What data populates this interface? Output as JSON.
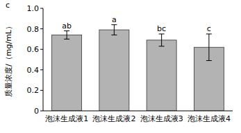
{
  "chart_data": {
    "type": "bar",
    "panel_label": "c",
    "ylabel": "质量浓度/（mg/mL）",
    "categories": [
      "泡沫生成液1",
      "泡沫生成液2",
      "泡沫生成液3",
      "泡沫生成液4"
    ],
    "values": [
      0.74,
      0.79,
      0.69,
      0.62
    ],
    "errors": [
      0.04,
      0.05,
      0.06,
      0.13
    ],
    "annotations": [
      "ab",
      "a",
      "bc",
      "c"
    ],
    "color": "#b3b3b3",
    "ylim": [
      0,
      1
    ],
    "yticks": [
      0,
      0.2,
      0.4,
      0.6,
      0.8,
      {
        "value": 1,
        "label": "1.0"
      }
    ],
    "grid": false
  }
}
